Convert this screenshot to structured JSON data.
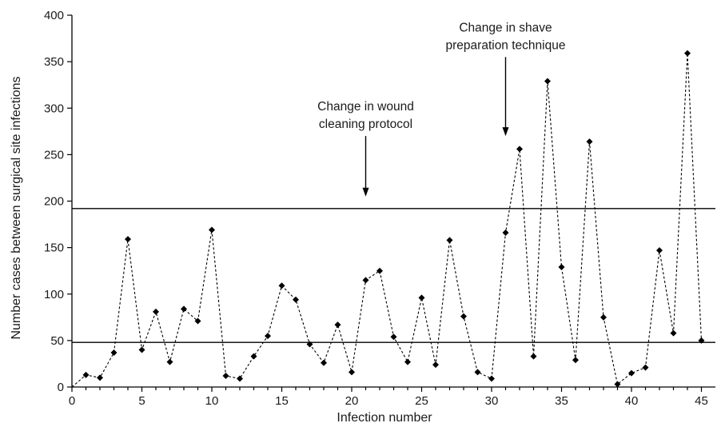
{
  "chart_data": {
    "type": "line",
    "xlabel": "Infection number",
    "ylabel": "Number cases between surgical site infections",
    "xlim": [
      0,
      46
    ],
    "ylim": [
      0,
      400
    ],
    "xticks": [
      0,
      5,
      10,
      15,
      20,
      25,
      30,
      35,
      40,
      45
    ],
    "yticks": [
      0,
      50,
      100,
      150,
      200,
      250,
      300,
      350,
      400
    ],
    "grid": false,
    "legend": "none",
    "series": [
      {
        "marker": "diamond",
        "line_style": "dotted",
        "x": [
          0,
          1,
          2,
          3,
          4,
          5,
          6,
          7,
          8,
          9,
          10,
          11,
          12,
          13,
          14,
          15,
          16,
          17,
          18,
          19,
          20,
          21,
          22,
          23,
          24,
          25,
          26,
          27,
          28,
          29,
          30,
          31,
          32,
          33,
          34,
          35,
          36,
          37,
          38,
          39,
          40,
          41,
          42,
          43,
          44,
          45
        ],
        "y": [
          0,
          13,
          10,
          37,
          159,
          40,
          81,
          27,
          84,
          71,
          169,
          12,
          9,
          33,
          55,
          109,
          94,
          46,
          26,
          67,
          16,
          115,
          125,
          54,
          27,
          96,
          24,
          158,
          76,
          16,
          9,
          166,
          256,
          33,
          329,
          129,
          29,
          264,
          75,
          3,
          15,
          21,
          147,
          58,
          359,
          50
        ],
        "markers_from_index": 1
      }
    ],
    "reference_lines": [
      {
        "y": 192
      },
      {
        "y": 48
      }
    ],
    "annotations": [
      {
        "lines": [
          "Change in wound",
          "cleaning protocol"
        ],
        "arrow_x": 21,
        "arrow_from_y": 270,
        "arrow_to_y": 205
      },
      {
        "lines": [
          "Change in shave",
          "preparation technique"
        ],
        "arrow_x": 31,
        "arrow_from_y": 355,
        "arrow_to_y": 270
      }
    ]
  }
}
